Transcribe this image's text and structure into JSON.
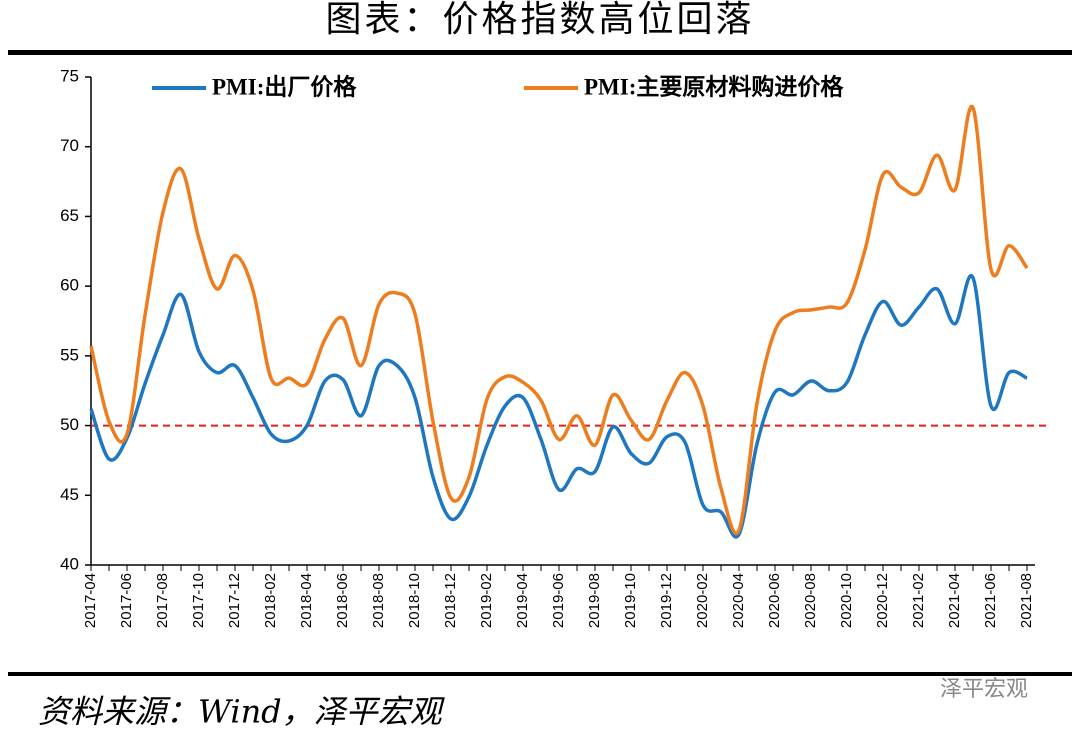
{
  "chart_data": {
    "type": "line",
    "title": "图表：价格指数高位回落",
    "source": "资料来源：Wind，泽平宏观",
    "watermark": "泽平宏观",
    "categories": [
      "2017-04",
      null,
      "2017-06",
      null,
      "2017-08",
      null,
      "2017-10",
      null,
      "2017-12",
      null,
      "2018-02",
      null,
      "2018-04",
      null,
      "2018-06",
      null,
      "2018-08",
      null,
      "2018-10",
      null,
      "2018-12",
      null,
      "2019-02",
      null,
      "2019-04",
      null,
      "2019-06",
      null,
      "2019-08",
      null,
      "2019-10",
      null,
      "2019-12",
      null,
      "2020-02",
      null,
      "2020-04",
      null,
      "2020-06",
      null,
      "2020-08",
      null,
      "2020-10",
      null,
      "2020-12",
      null,
      "2021-02",
      null,
      "2021-04",
      null,
      "2021-06",
      null,
      "2021-08"
    ],
    "series": [
      {
        "name": "PMI:出厂价格",
        "color": "#1f77c0",
        "values": [
          51.2,
          47.6,
          49.1,
          53.0,
          56.5,
          59.4,
          55.3,
          53.8,
          54.3,
          52.0,
          49.4,
          48.9,
          50.0,
          53.2,
          53.3,
          50.7,
          54.3,
          54.3,
          52.0,
          46.3,
          43.3,
          44.9,
          48.6,
          51.4,
          52.0,
          49.0,
          45.4,
          46.9,
          46.7,
          49.9,
          48.0,
          47.3,
          49.2,
          48.8,
          44.3,
          43.8,
          42.2,
          48.7,
          52.4,
          52.2,
          53.2,
          52.5,
          53.1,
          56.5,
          58.9,
          57.2,
          58.5,
          59.8,
          57.3,
          60.6,
          51.4,
          53.8,
          53.4
        ]
      },
      {
        "name": "PMI:主要原材料购进价格",
        "color": "#ed7d1f",
        "values": [
          55.7,
          50.3,
          49.4,
          57.9,
          65.3,
          68.4,
          63.4,
          59.8,
          62.2,
          59.7,
          53.4,
          53.4,
          53.0,
          56.2,
          57.7,
          54.3,
          58.7,
          59.5,
          58.0,
          50.3,
          44.8,
          46.3,
          51.9,
          53.5,
          53.1,
          51.8,
          49.0,
          50.7,
          48.6,
          52.2,
          50.4,
          49.0,
          51.8,
          53.8,
          51.4,
          45.5,
          42.5,
          51.6,
          56.8,
          58.1,
          58.3,
          58.5,
          58.8,
          62.6,
          68.0,
          67.1,
          66.7,
          69.4,
          66.9,
          72.8,
          61.2,
          62.9,
          61.3
        ]
      }
    ],
    "reference_line": 50,
    "reference_color": "#e0201c",
    "ylim": [
      40,
      75
    ],
    "yticks": [
      40,
      45,
      50,
      55,
      60,
      65,
      70,
      75
    ],
    "legend": "top"
  }
}
